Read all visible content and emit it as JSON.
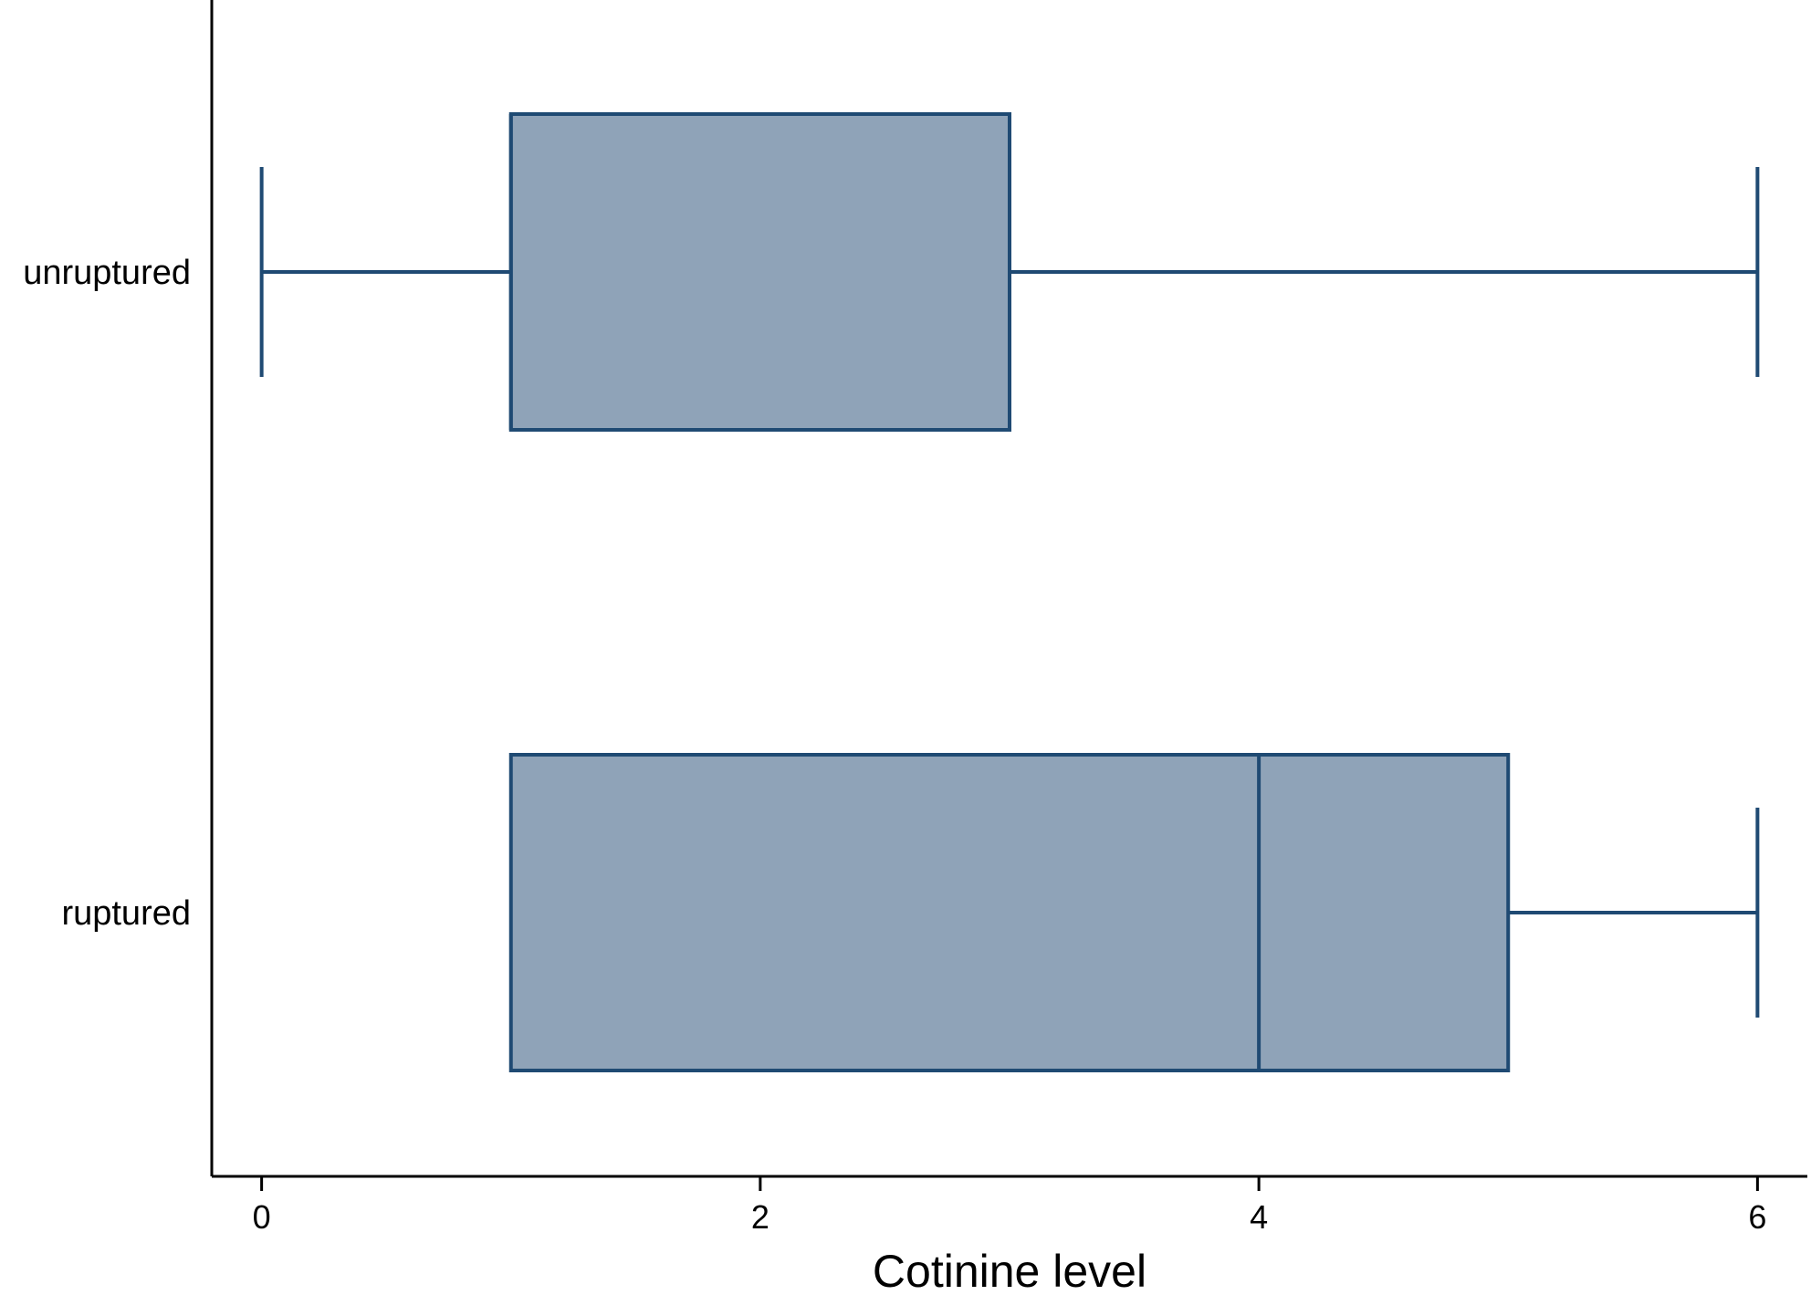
{
  "chart_data": {
    "type": "boxplot",
    "orientation": "horizontal",
    "title": "",
    "xlabel": "Cotinine level",
    "ylabel": "",
    "xlim": [
      -0.2,
      6.2
    ],
    "xticks": [
      0,
      2,
      4,
      6
    ],
    "xtick_labels": [
      "0",
      "2",
      "4",
      "6"
    ],
    "grid": false,
    "legend": "none",
    "colors": {
      "box_fill": "#8fa3b8",
      "box_stroke": "#1f4a73",
      "axis": "#000000"
    },
    "categories": [
      "unruptured",
      "ruptured"
    ],
    "boxes": [
      {
        "category": "unruptured",
        "whisker_low": 0,
        "q1": 1,
        "median": 1,
        "q3": 3,
        "whisker_high": 6
      },
      {
        "category": "ruptured",
        "whisker_low": 1,
        "q1": 1,
        "median": 4,
        "q3": 5,
        "whisker_high": 6
      }
    ]
  }
}
